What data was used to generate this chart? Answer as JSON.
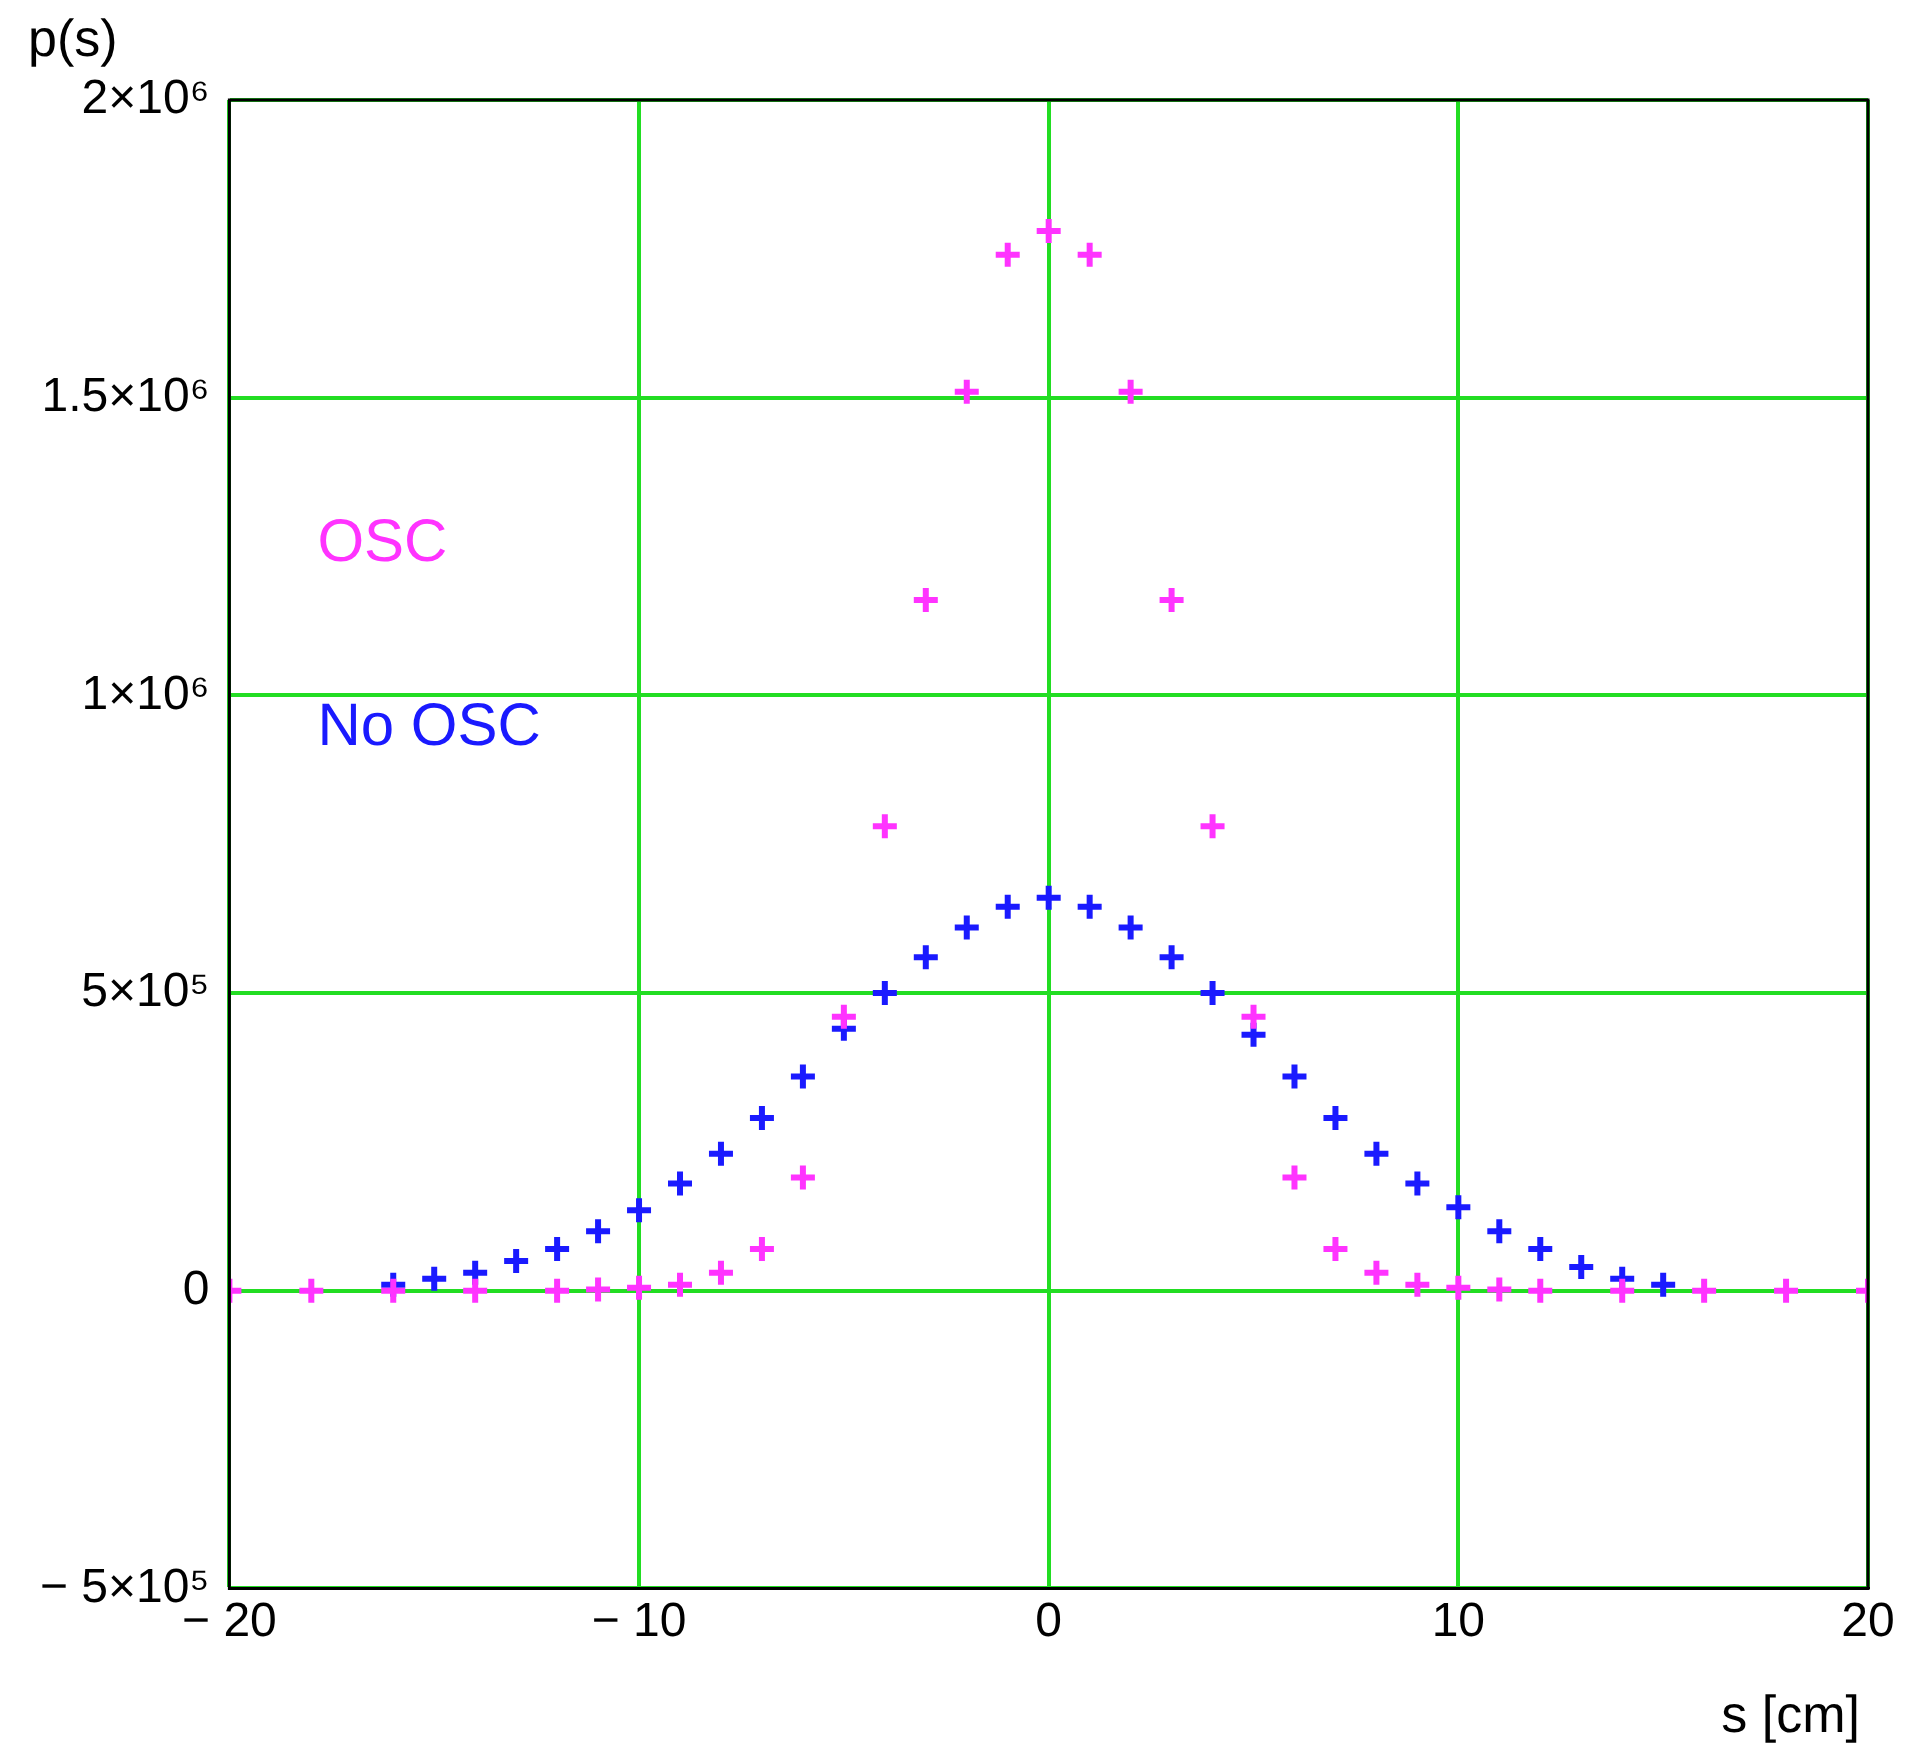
{
  "chart_data": {
    "type": "scatter",
    "xlabel": "s [cm]",
    "ylabel": "p(s)",
    "marker": "cross",
    "grid": true,
    "legend": "left",
    "xlim": [
      -20,
      20
    ],
    "xticks": [
      {
        "value": -20,
        "label": "− 20"
      },
      {
        "value": -10,
        "label": "− 10"
      },
      0,
      10,
      20
    ],
    "ylim": [
      -500000,
      2000000
    ],
    "yticks": [
      {
        "value": -500000,
        "label": "− 5×10⁵"
      },
      {
        "value": 0,
        "label": "0"
      },
      {
        "value": 500000,
        "label": "5×10⁵"
      },
      {
        "value": 1000000,
        "label": "1×10⁶"
      },
      {
        "value": 1500000,
        "label": "1.5×10⁶"
      },
      {
        "value": 2000000,
        "label": "2×10⁶"
      }
    ],
    "series": [
      {
        "name": "OSC",
        "color": "#ff33ff",
        "x": [
          -20,
          -18,
          -16,
          -14,
          -12,
          -11,
          -10,
          -9,
          -8,
          -7,
          -6,
          -5,
          -4,
          -3,
          -2,
          -1,
          0,
          1,
          2,
          3,
          4,
          5,
          6,
          7,
          8,
          9,
          10,
          11,
          12,
          14,
          16,
          18,
          20
        ],
        "values": [
          0,
          0,
          0,
          0,
          0,
          2000,
          5000,
          10000,
          30000,
          70000,
          190000,
          460000,
          780000,
          1160000,
          1510000,
          1740000,
          1780000,
          1740000,
          1510000,
          1160000,
          780000,
          460000,
          190000,
          70000,
          30000,
          10000,
          5000,
          2000,
          0,
          0,
          0,
          0,
          0
        ]
      },
      {
        "name": "No OSC",
        "color": "#1a1aff",
        "x": [
          -16,
          -15,
          -14,
          -13,
          -12,
          -11,
          -10,
          -9,
          -8,
          -7,
          -6,
          -5,
          -4,
          -3,
          -2,
          -1,
          0,
          1,
          2,
          3,
          4,
          5,
          6,
          7,
          8,
          9,
          10,
          11,
          12,
          13,
          14,
          15
        ],
        "values": [
          10000,
          20000,
          30000,
          50000,
          70000,
          100000,
          135000,
          180000,
          230000,
          290000,
          360000,
          440000,
          500000,
          560000,
          610000,
          645000,
          660000,
          645000,
          610000,
          560000,
          500000,
          430000,
          360000,
          290000,
          230000,
          180000,
          140000,
          100000,
          70000,
          40000,
          20000,
          10000
        ]
      }
    ]
  }
}
